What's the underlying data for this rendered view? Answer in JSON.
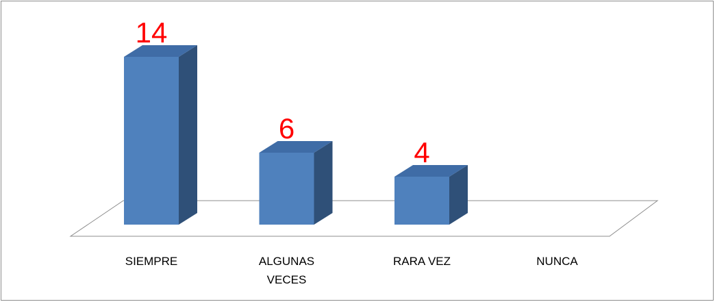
{
  "chart_data": {
    "type": "bar3d",
    "categories": [
      "SIEMPRE",
      "ALGUNAS VECES",
      "RARA VEZ",
      "NUNCA"
    ],
    "values": [
      14,
      6,
      4,
      0
    ],
    "color": "#4f81bd",
    "label_color": "#ff0000"
  }
}
